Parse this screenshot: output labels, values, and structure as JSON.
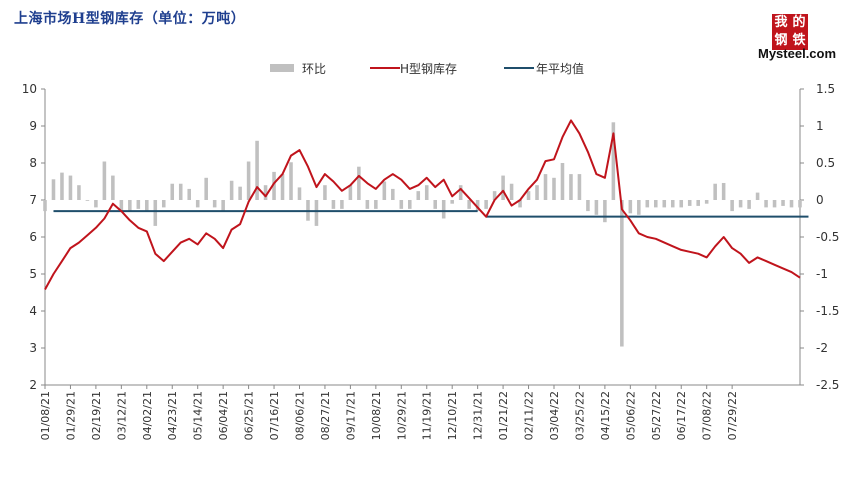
{
  "header": {
    "title": "上海市场H型钢库存（单位：万吨）"
  },
  "logo": {
    "glyphs": [
      "我",
      "的",
      "钢",
      "铁"
    ],
    "text": "Mysteel.com"
  },
  "colors": {
    "bar": "#c0c0c0",
    "stock_line": "#c0141c",
    "avg_line": "#1f4e6b"
  },
  "chart_data": {
    "type": "bar+line",
    "legend": [
      "环比",
      "H型钢库存",
      "年平均值"
    ],
    "legend_position": "top",
    "y_left": {
      "min": 2,
      "max": 10,
      "ticks": [
        2,
        3,
        4,
        5,
        6,
        7,
        8,
        9,
        10
      ]
    },
    "y_right": {
      "min": -2.5,
      "max": 1.5,
      "ticks": [
        "1.5",
        "1",
        "0.5",
        "0",
        "-0.5",
        "-1",
        "-1.5",
        "-2",
        "-2.5"
      ]
    },
    "x_tick_labels": [
      "01/08/21",
      "01/29/21",
      "02/19/21",
      "03/12/21",
      "04/02/21",
      "04/23/21",
      "05/14/21",
      "06/04/21",
      "06/25/21",
      "07/16/21",
      "08/06/21",
      "08/27/21",
      "09/17/21",
      "10/08/21",
      "10/29/21",
      "11/19/21",
      "12/10/21",
      "12/31/21",
      "01/21/22",
      "02/11/22",
      "03/04/22",
      "03/25/22",
      "04/15/22",
      "05/06/22",
      "05/27/22",
      "06/17/22",
      "07/08/22",
      "07/29/22"
    ],
    "series": [
      {
        "name": "H型钢库存",
        "axis": "left",
        "values": [
          4.58,
          5.0,
          5.35,
          5.7,
          5.85,
          6.05,
          6.25,
          6.5,
          6.9,
          6.7,
          6.45,
          6.25,
          6.15,
          5.55,
          5.35,
          5.6,
          5.85,
          5.95,
          5.8,
          6.1,
          5.95,
          5.7,
          6.2,
          6.35,
          6.95,
          7.35,
          7.1,
          7.45,
          7.7,
          8.2,
          8.35,
          7.9,
          7.35,
          7.7,
          7.5,
          7.25,
          7.4,
          7.65,
          7.45,
          7.3,
          7.55,
          7.7,
          7.55,
          7.3,
          7.4,
          7.6,
          7.35,
          7.55,
          7.1,
          7.3,
          7.05,
          6.8,
          6.55,
          7.0,
          7.25,
          6.85,
          7.0,
          7.3,
          7.55,
          8.05,
          8.1,
          8.7,
          9.15,
          8.8,
          8.3,
          7.7,
          7.6,
          8.8,
          6.75,
          6.45,
          6.1,
          6.0,
          5.95,
          5.85,
          5.75,
          5.65,
          5.6,
          5.55,
          5.45,
          5.75,
          6.0,
          5.7,
          5.55,
          5.3,
          5.45,
          5.35,
          5.25,
          5.15,
          5.05,
          4.9
        ]
      },
      {
        "name": "环比",
        "axis": "right",
        "values": [
          -0.15,
          0.28,
          0.37,
          0.33,
          0.2,
          0.0,
          -0.1,
          0.52,
          0.33,
          -0.15,
          -0.15,
          -0.12,
          -0.15,
          -0.35,
          -0.1,
          0.22,
          0.22,
          0.15,
          -0.1,
          0.3,
          -0.1,
          -0.15,
          0.26,
          0.18,
          0.52,
          0.8,
          0.2,
          0.38,
          0.35,
          0.51,
          0.17,
          -0.28,
          -0.35,
          0.2,
          -0.12,
          -0.12,
          0.2,
          0.45,
          -0.12,
          -0.12,
          0.25,
          0.15,
          -0.12,
          -0.12,
          0.12,
          0.2,
          -0.12,
          -0.25,
          -0.05,
          0.2,
          -0.12,
          -0.15,
          -0.12,
          0.12,
          0.33,
          0.22,
          -0.1,
          0.12,
          0.2,
          0.35,
          0.3,
          0.5,
          0.35,
          0.35,
          -0.15,
          -0.2,
          -0.3,
          1.05,
          -1.98,
          -0.18,
          -0.2,
          -0.1,
          -0.1,
          -0.1,
          -0.1,
          -0.1,
          -0.08,
          -0.08,
          -0.05,
          0.22,
          0.23,
          -0.15,
          -0.1,
          -0.12,
          0.1,
          -0.1,
          -0.1,
          -0.08,
          -0.1,
          -0.1
        ]
      },
      {
        "name": "年平均值",
        "axis": "left",
        "segments": [
          {
            "from": 1,
            "to": 51,
            "value": 6.7
          },
          {
            "from": 52,
            "to": 90,
            "value": 6.55
          }
        ]
      }
    ]
  }
}
